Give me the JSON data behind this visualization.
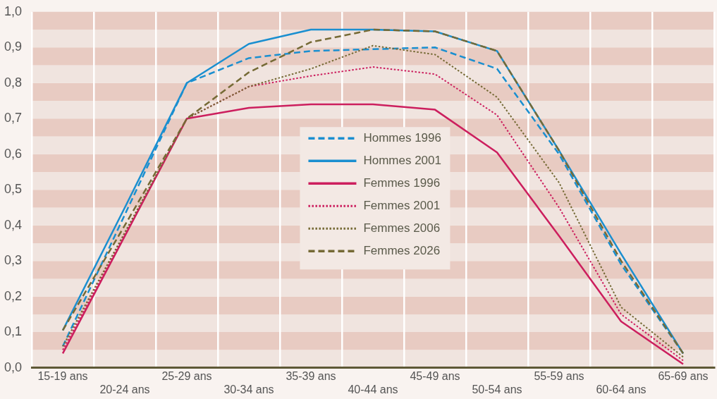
{
  "chart_data": {
    "type": "line",
    "categories": [
      "15-19 ans",
      "20-24 ans",
      "25-29 ans",
      "30-34 ans",
      "35-39 ans",
      "40-44 ans",
      "45-49 ans",
      "50-54 ans",
      "55-59 ans",
      "60-64 ans",
      "65-69 ans"
    ],
    "series": [
      {
        "name": "Hommes 1996",
        "color": "#1a8fd0",
        "line_style": "dashed",
        "values": [
          0.06,
          0.43,
          0.8,
          0.87,
          0.89,
          0.895,
          0.9,
          0.84,
          0.6,
          0.29,
          0.04
        ]
      },
      {
        "name": "Hommes 2001",
        "color": "#1a8fd0",
        "line_style": "solid",
        "values": [
          0.105,
          0.45,
          0.8,
          0.91,
          0.95,
          0.95,
          0.945,
          0.89,
          0.61,
          0.32,
          0.04
        ]
      },
      {
        "name": "Femmes 1996",
        "color": "#cc1f5e",
        "line_style": "solid",
        "values": [
          0.04,
          0.37,
          0.7,
          0.73,
          0.74,
          0.74,
          0.725,
          0.605,
          0.37,
          0.13,
          0.01
        ]
      },
      {
        "name": "Femmes 2001",
        "color": "#cc1f5e",
        "line_style": "dotted",
        "values": [
          0.05,
          0.375,
          0.7,
          0.79,
          0.82,
          0.845,
          0.825,
          0.71,
          0.45,
          0.15,
          0.02
        ]
      },
      {
        "name": "Femmes 2006",
        "color": "#756a35",
        "line_style": "dotted",
        "values": [
          0.06,
          0.38,
          0.7,
          0.79,
          0.84,
          0.905,
          0.88,
          0.76,
          0.52,
          0.17,
          0.03
        ]
      },
      {
        "name": "Femmes 2026",
        "color": "#756a35",
        "line_style": "dashed",
        "values": [
          0.105,
          0.4,
          0.7,
          0.83,
          0.915,
          0.95,
          0.945,
          0.89,
          0.61,
          0.3,
          0.04
        ]
      }
    ],
    "ylim": [
      0,
      1
    ],
    "yticks": [
      {
        "value": 0,
        "label": "0,0"
      },
      {
        "value": 0.1,
        "label": "0,1"
      },
      {
        "value": 0.2,
        "label": "0,2"
      },
      {
        "value": 0.3,
        "label": "0,3"
      },
      {
        "value": 0.4,
        "label": "0,4"
      },
      {
        "value": 0.5,
        "label": "0,5"
      },
      {
        "value": 0.6,
        "label": "0,6"
      },
      {
        "value": 0.7,
        "label": "0,7"
      },
      {
        "value": 0.8,
        "label": "0,8"
      },
      {
        "value": 0.9,
        "label": "0,9"
      },
      {
        "value": 1,
        "label": "1,0"
      }
    ],
    "grid": true,
    "bands": [
      {
        "axis": "y",
        "from": 0,
        "to": 0.05,
        "color": "#f0e4df"
      },
      {
        "axis": "y",
        "from": 0.05,
        "to": 0.1,
        "color": "#e8cbc2"
      },
      {
        "axis": "y",
        "from": 0.1,
        "to": 0.15,
        "color": "#f0e4df"
      },
      {
        "axis": "y",
        "from": 0.15,
        "to": 0.2,
        "color": "#e8cbc2"
      },
      {
        "axis": "y",
        "from": 0.2,
        "to": 0.25,
        "color": "#f0e4df"
      },
      {
        "axis": "y",
        "from": 0.25,
        "to": 0.3,
        "color": "#e8cbc2"
      },
      {
        "axis": "y",
        "from": 0.3,
        "to": 0.35,
        "color": "#f0e4df"
      },
      {
        "axis": "y",
        "from": 0.35,
        "to": 0.4,
        "color": "#e8cbc2"
      },
      {
        "axis": "y",
        "from": 0.4,
        "to": 0.45,
        "color": "#f0e4df"
      },
      {
        "axis": "y",
        "from": 0.45,
        "to": 0.5,
        "color": "#e8cbc2"
      },
      {
        "axis": "y",
        "from": 0.5,
        "to": 0.55,
        "color": "#f0e4df"
      },
      {
        "axis": "y",
        "from": 0.55,
        "to": 0.6,
        "color": "#e8cbc2"
      },
      {
        "axis": "y",
        "from": 0.6,
        "to": 0.65,
        "color": "#f0e4df"
      },
      {
        "axis": "y",
        "from": 0.65,
        "to": 0.7,
        "color": "#e8cbc2"
      },
      {
        "axis": "y",
        "from": 0.7,
        "to": 0.75,
        "color": "#f0e4df"
      },
      {
        "axis": "y",
        "from": 0.75,
        "to": 0.8,
        "color": "#e8cbc2"
      },
      {
        "axis": "y",
        "from": 0.8,
        "to": 0.85,
        "color": "#f0e4df"
      },
      {
        "axis": "y",
        "from": 0.85,
        "to": 0.9,
        "color": "#e8cbc2"
      },
      {
        "axis": "y",
        "from": 0.9,
        "to": 0.95,
        "color": "#f0e4df"
      },
      {
        "axis": "y",
        "from": 0.95,
        "to": 1,
        "color": "#e8cbc2"
      }
    ],
    "legend": "center",
    "marker": "none"
  }
}
